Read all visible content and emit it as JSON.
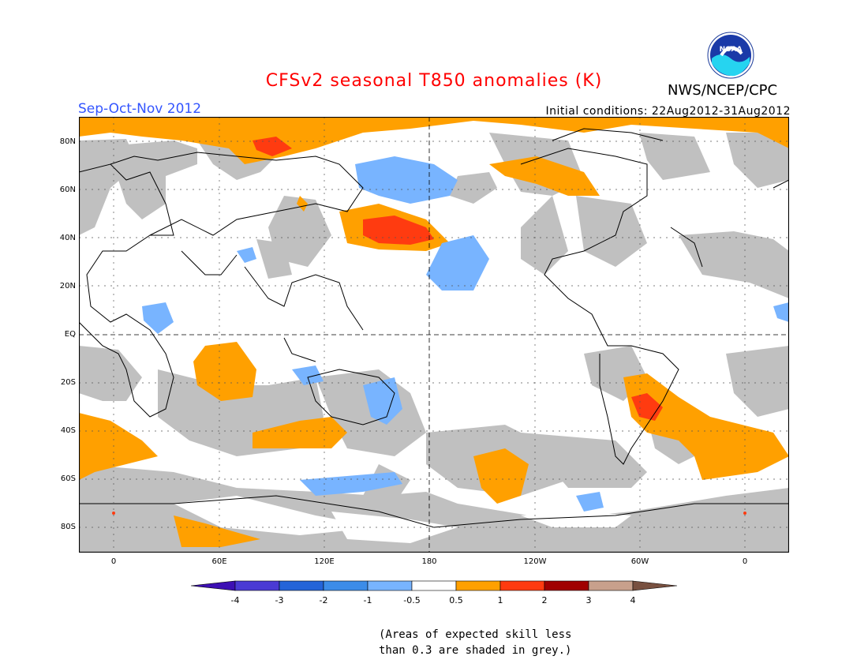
{
  "header": {
    "title": "CFSv2 seasonal T850 anomalies (K)",
    "season": "Sep-Oct-Nov 2012",
    "initial_conditions": "Initial conditions: 22Aug2012-31Aug2012",
    "organization": "NWS/NCEP/CPC",
    "logo_text": "NOAA"
  },
  "map": {
    "lat_labels": [
      "80N",
      "60N",
      "40N",
      "20N",
      "EQ",
      "20S",
      "40S",
      "60S",
      "80S"
    ],
    "lon_labels": [
      "0",
      "60E",
      "120E",
      "180",
      "120W",
      "60W",
      "0"
    ],
    "colors": {
      "grey_skill": "#c0c0c0",
      "ocean": "#ffffff",
      "warm_05_1": "#ffa000",
      "warm_1_2": "#ff3b10",
      "cool_m1_m05": "#78b4ff"
    }
  },
  "legend": {
    "bins": [
      {
        "color": "#3d10b4"
      },
      {
        "color": "#4a3ad4"
      },
      {
        "color": "#2464d8"
      },
      {
        "color": "#3c8ce8"
      },
      {
        "color": "#78b4ff"
      },
      {
        "color": "#ffffff"
      },
      {
        "color": "#ffa000"
      },
      {
        "color": "#ff3b10"
      },
      {
        "color": "#a00000"
      },
      {
        "color": "#c8a08c"
      },
      {
        "color": "#785040"
      }
    ],
    "labels": [
      "-4",
      "-3",
      "-2",
      "-1",
      "-0.5",
      "0.5",
      "1",
      "2",
      "3",
      "4"
    ]
  },
  "note": {
    "line1": "(Areas of expected skill less",
    "line2": "than 0.3 are shaded in grey.)"
  }
}
